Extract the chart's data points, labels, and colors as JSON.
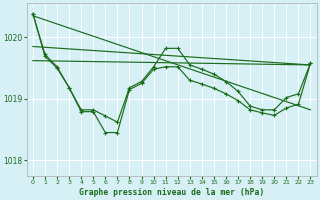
{
  "background_color": "#d6f0f6",
  "line_color": "#1a6b1a",
  "xlabel": "Graphe pression niveau de la mer (hPa)",
  "ylim": [
    1017.75,
    1020.55
  ],
  "xlim": [
    -0.5,
    23.5
  ],
  "yticks": [
    1018,
    1019,
    1020
  ],
  "xticks": [
    0,
    1,
    2,
    3,
    4,
    5,
    6,
    7,
    8,
    9,
    10,
    11,
    12,
    13,
    14,
    15,
    16,
    17,
    18,
    19,
    20,
    21,
    22,
    23
  ],
  "line1_x": [
    0,
    1,
    2,
    3,
    4,
    5,
    6,
    7,
    8,
    9,
    10,
    11,
    12,
    13,
    14,
    15,
    16,
    17,
    18,
    19,
    20,
    21,
    22,
    23
  ],
  "line1_y": [
    1020.38,
    1019.72,
    1019.52,
    1019.18,
    1018.82,
    1018.82,
    1018.72,
    1018.62,
    1019.18,
    1019.28,
    1019.52,
    1019.82,
    1019.82,
    1019.55,
    1019.48,
    1019.4,
    1019.28,
    1019.12,
    1018.88,
    1018.82,
    1018.82,
    1019.02,
    1019.08,
    1019.58
  ],
  "line2_x": [
    0,
    1,
    2,
    3,
    4,
    5,
    6,
    7,
    8,
    9,
    10,
    11,
    12,
    13,
    14,
    15,
    16,
    17,
    18,
    19,
    20,
    21,
    22,
    23
  ],
  "line2_y": [
    1020.38,
    1019.69,
    1019.5,
    1019.18,
    1018.79,
    1018.79,
    1018.45,
    1018.45,
    1019.15,
    1019.25,
    1019.48,
    1019.52,
    1019.52,
    1019.3,
    1019.24,
    1019.17,
    1019.08,
    1018.97,
    1018.82,
    1018.77,
    1018.73,
    1018.85,
    1018.91,
    1019.58
  ],
  "line3_x": [
    0,
    10,
    23
  ],
  "line3_y": [
    1020.32,
    1019.43,
    1019.58
  ],
  "line4_x": [
    0,
    10,
    23
  ],
  "line4_y": [
    1019.85,
    1019.43,
    1018.84
  ],
  "line5_x": [
    0,
    10,
    23
  ],
  "line5_y": [
    1019.62,
    1019.43,
    1018.84
  ]
}
